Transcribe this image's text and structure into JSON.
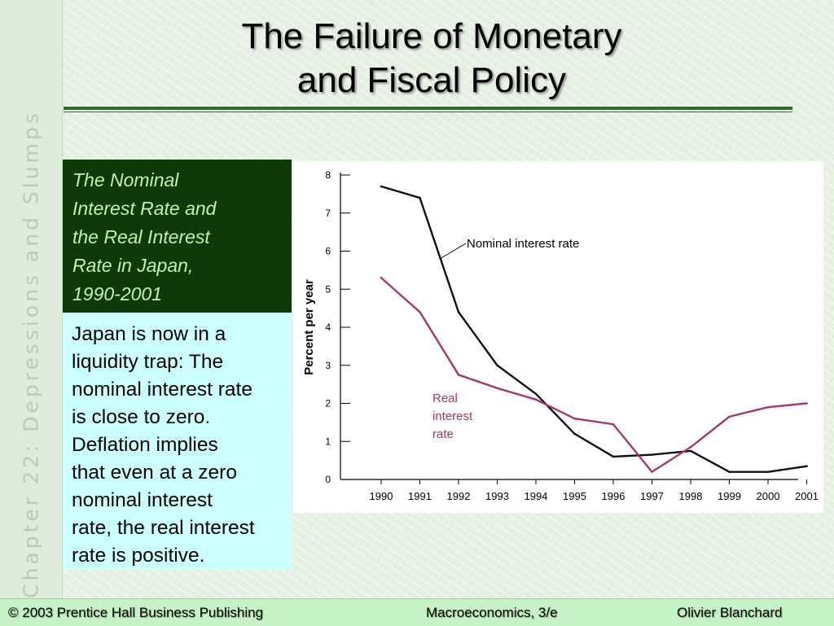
{
  "slide": {
    "title_lines": [
      "The Failure of Monetary",
      "and Fiscal Policy"
    ],
    "side_label": "Chapter 22:  Depressions and Slumps"
  },
  "caption": {
    "lines": [
      "The Nominal",
      "Interest Rate and",
      "the Real Interest",
      "Rate in Japan,",
      "1990-2001"
    ]
  },
  "note": {
    "lines": [
      "Japan is now in a",
      "liquidity trap:  The",
      "nominal interest rate",
      "is close to zero.",
      "Deflation implies",
      "that even at a zero",
      "nominal interest",
      "rate, the real interest",
      "rate is positive."
    ]
  },
  "footer": {
    "left": "© 2003 Prentice Hall Business Publishing",
    "center": "Macroeconomics, 3/e",
    "right": "Olivier Blanchard"
  },
  "colors": {
    "nominal": "#111111",
    "real": "#a3386e",
    "caption_bg": "#0e3a0a",
    "caption_text": "#c6f0a8",
    "note_bg": "#ccffff",
    "rule": "#2f6b2f"
  },
  "chart_data": {
    "type": "line",
    "title": "",
    "xlabel": "",
    "ylabel": "Percent per year",
    "x": [
      1990,
      1991,
      1992,
      1993,
      1994,
      1995,
      1996,
      1997,
      1998,
      1999,
      2000,
      2001
    ],
    "ylim": [
      0,
      8
    ],
    "yticks": [
      0,
      1,
      2,
      3,
      4,
      5,
      6,
      7,
      8
    ],
    "grid": false,
    "series": [
      {
        "name": "Nominal interest rate",
        "label_lines": [
          "Nominal interest rate"
        ],
        "color": "#111111",
        "values": [
          7.7,
          7.4,
          4.4,
          3.0,
          2.25,
          1.2,
          0.6,
          0.65,
          0.75,
          0.2,
          0.2,
          0.35
        ]
      },
      {
        "name": "Real interest rate",
        "label_lines": [
          "Real",
          "interest",
          "rate"
        ],
        "color": "#a3386e",
        "values": [
          5.3,
          4.4,
          2.75,
          2.4,
          2.1,
          1.6,
          1.45,
          0.2,
          0.85,
          1.65,
          1.9,
          2.0
        ]
      }
    ]
  }
}
